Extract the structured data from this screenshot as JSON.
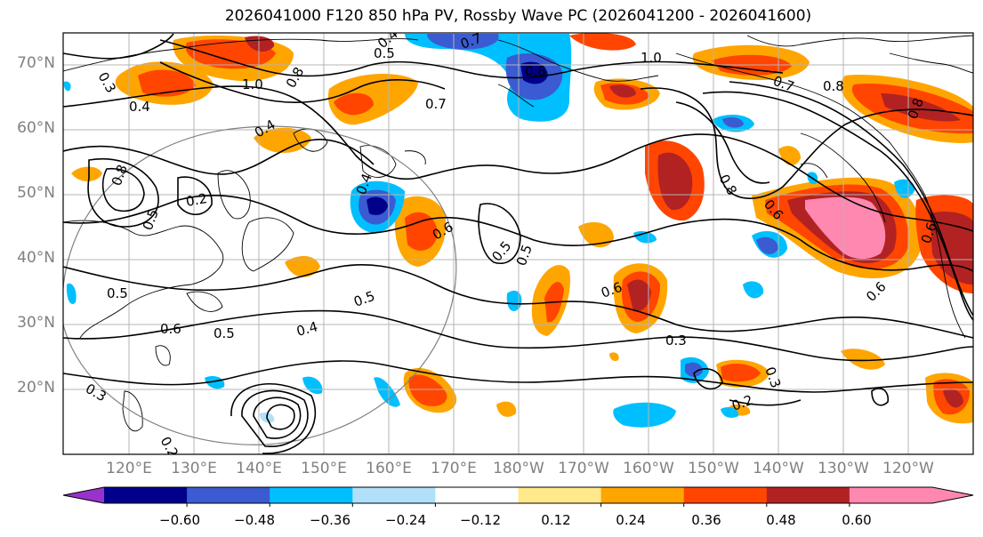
{
  "title": "2026041000 F120 850 hPa PV, Rossby Wave PC (2026041200 - 2026041600)",
  "lat_labels": [
    "70°N",
    "60°N",
    "50°N",
    "40°N",
    "30°N",
    "20°N"
  ],
  "lon_labels": [
    "120°E",
    "130°E",
    "140°E",
    "150°E",
    "160°E",
    "170°E",
    "180°W",
    "170°W",
    "160°W",
    "150°W",
    "140°W",
    "130°W",
    "120°W"
  ],
  "contour_labels": [
    "0.7",
    "0.8",
    "1.0",
    "0.7",
    "0.8",
    "0.5",
    "0.4",
    "0.3",
    "0.4",
    "0.2",
    "0.8",
    "0.5",
    "0.6",
    "0.5",
    "0.6",
    "0.5",
    "0.4",
    "0.5",
    "0.6",
    "0.3",
    "0.8",
    "0.6",
    "0.6",
    "0.3",
    "0.2",
    "0.3",
    "0.2",
    "0.5",
    "0.7",
    "0.8",
    "0.8",
    "0.4",
    "1.0",
    "0.4",
    "0.6",
    "0.5"
  ],
  "colorbar": {
    "ticks": [
      "−0.60",
      "−0.48",
      "−0.36",
      "−0.24",
      "−0.12",
      "0.12",
      "0.24",
      "0.36",
      "0.48",
      "0.60"
    ],
    "colors": [
      "#9932cc",
      "#00008b",
      "#3a5bd1",
      "#00bfff",
      "#b0e0fa",
      "#ffffff",
      "#ffe98a",
      "#ffa500",
      "#ff4500",
      "#b22222",
      "#ff88b0",
      "#ff88b0"
    ]
  },
  "colors": {
    "coast": "#000000",
    "grid": "#b4b4b4",
    "contour": "#000000",
    "circle": "#808080"
  }
}
